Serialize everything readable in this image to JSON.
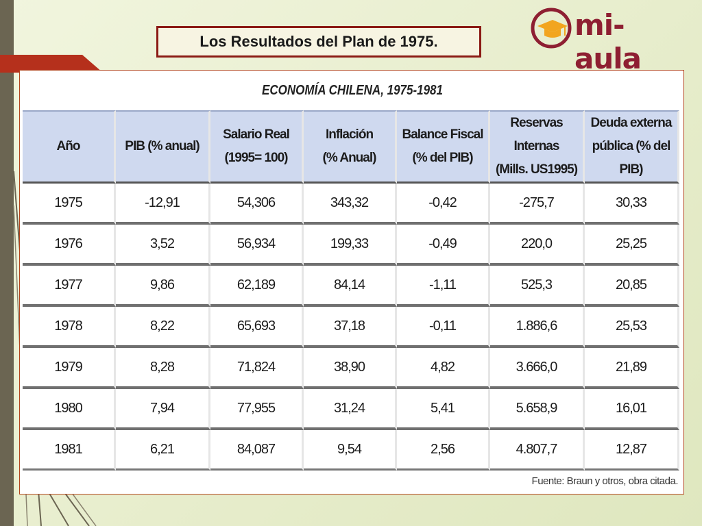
{
  "slide": {
    "title": "Los Resultados del Plan de 1975.",
    "logo_text": "mi-aula"
  },
  "document": {
    "title": "ECONOMÍA CHILENA, 1975-1981",
    "columns": [
      [
        "Año",
        ""
      ],
      [
        "PIB (% anual)",
        ""
      ],
      [
        "Salario Real",
        "(1995= 100)"
      ],
      [
        "Inflación",
        "(% Anual)"
      ],
      [
        "Balance Fiscal",
        "(% del PIB)"
      ],
      [
        "Reservas Internas",
        "(Mills. US1995)"
      ],
      [
        "Deuda externa",
        "pública  (% del PIB)"
      ]
    ],
    "rows": [
      [
        "1975",
        "-12,91",
        "54,306",
        "343,32",
        "-0,42",
        "-275,7",
        "30,33"
      ],
      [
        "1976",
        "3,52",
        "56,934",
        "199,33",
        "-0,49",
        "220,0",
        "25,25"
      ],
      [
        "1977",
        "9,86",
        "62,189",
        "84,14",
        "-1,11",
        "525,3",
        "20,85"
      ],
      [
        "1978",
        "8,22",
        "65,693",
        "37,18",
        "-0,11",
        "1.886,6",
        "25,53"
      ],
      [
        "1979",
        "8,28",
        "71,824",
        "38,90",
        "4,82",
        "3.666,0",
        "21,89"
      ],
      [
        "1980",
        "7,94",
        "77,955",
        "31,24",
        "5,41",
        "5.658,9",
        "16,01"
      ],
      [
        "1981",
        "6,21",
        "84,087",
        "9,54",
        "2,56",
        "4.807,7",
        "12,87"
      ]
    ],
    "source": "Fuente: Braun y otros, obra citada."
  },
  "colors": {
    "accent_red": "#b5301c",
    "logo_maroon": "#8e1f32",
    "header_blue": "#cfd9ef"
  }
}
